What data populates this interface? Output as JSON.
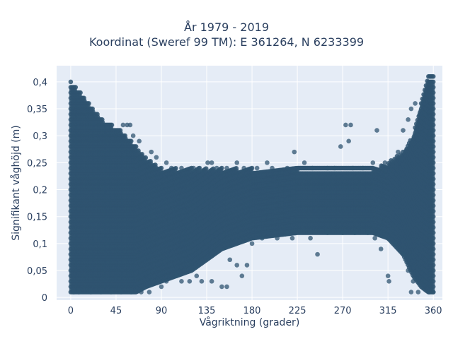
{
  "chart_data": {
    "type": "scatter",
    "title_lines": [
      "År 1979 - 2019",
      "Koordinat (Sweref 99 TM): E 361264, N 6233399"
    ],
    "xlabel": "Vågriktning (grader)",
    "ylabel": "Signifikant våghöjd (m)",
    "xlim": [
      -14,
      369
    ],
    "ylim": [
      -0.005,
      0.43
    ],
    "xticks": [
      0,
      45,
      90,
      135,
      180,
      225,
      270,
      315,
      360
    ],
    "xtick_labels": [
      "0",
      "45",
      "90",
      "135",
      "180",
      "225",
      "270",
      "315",
      "360"
    ],
    "yticks": [
      0,
      0.05,
      0.1,
      0.15,
      0.2,
      0.25,
      0.3,
      0.35,
      0.4
    ],
    "ytick_labels": [
      "0",
      "0,05",
      "0,1",
      "0,15",
      "0,2",
      "0,25",
      "0,3",
      "0,35",
      "0,4"
    ],
    "grid": true,
    "marker_color": "#2f5470",
    "dense_band": {
      "height_step": 0.01,
      "x_range": [
        0,
        360
      ],
      "y_range": [
        0.01,
        0.4
      ]
    },
    "envelope": [
      {
        "x": 0,
        "ymax": 0.4,
        "ymin": 0.01
      },
      {
        "x": 10,
        "ymax": 0.38,
        "ymin": 0.01
      },
      {
        "x": 18,
        "ymax": 0.36,
        "ymin": 0.01
      },
      {
        "x": 32,
        "ymax": 0.33,
        "ymin": 0.01
      },
      {
        "x": 50,
        "ymax": 0.31,
        "ymin": 0.01
      },
      {
        "x": 65,
        "ymax": 0.28,
        "ymin": 0.01
      },
      {
        "x": 75,
        "ymax": 0.26,
        "ymin": 0.02
      },
      {
        "x": 90,
        "ymax": 0.24,
        "ymin": 0.03
      },
      {
        "x": 120,
        "ymax": 0.24,
        "ymin": 0.05
      },
      {
        "x": 150,
        "ymax": 0.24,
        "ymin": 0.09
      },
      {
        "x": 180,
        "ymax": 0.24,
        "ymin": 0.11
      },
      {
        "x": 225,
        "ymax": 0.24,
        "ymin": 0.12
      },
      {
        "x": 270,
        "ymax": 0.24,
        "ymin": 0.12
      },
      {
        "x": 300,
        "ymax": 0.24,
        "ymin": 0.12
      },
      {
        "x": 315,
        "ymax": 0.25,
        "ymin": 0.11
      },
      {
        "x": 330,
        "ymax": 0.27,
        "ymin": 0.08
      },
      {
        "x": 340,
        "ymax": 0.3,
        "ymin": 0.04
      },
      {
        "x": 348,
        "ymax": 0.36,
        "ymin": 0.02
      },
      {
        "x": 355,
        "ymax": 0.41,
        "ymin": 0.01
      },
      {
        "x": 360,
        "ymax": 0.41,
        "ymin": 0.01
      }
    ],
    "outliers": [
      {
        "x": 3,
        "y": 0.01
      },
      {
        "x": 8,
        "y": 0.01
      },
      {
        "x": 20,
        "y": 0.01
      },
      {
        "x": 30,
        "y": 0.01
      },
      {
        "x": 40,
        "y": 0.01
      },
      {
        "x": 50,
        "y": 0.01
      },
      {
        "x": 60,
        "y": 0.01
      },
      {
        "x": 70,
        "y": 0.01
      },
      {
        "x": 78,
        "y": 0.01
      },
      {
        "x": 52,
        "y": 0.32
      },
      {
        "x": 56,
        "y": 0.32
      },
      {
        "x": 59,
        "y": 0.32
      },
      {
        "x": 62,
        "y": 0.3
      },
      {
        "x": 68,
        "y": 0.29
      },
      {
        "x": 80,
        "y": 0.27
      },
      {
        "x": 85,
        "y": 0.26
      },
      {
        "x": 95,
        "y": 0.25
      },
      {
        "x": 100,
        "y": 0.24
      },
      {
        "x": 110,
        "y": 0.24
      },
      {
        "x": 122,
        "y": 0.24
      },
      {
        "x": 128,
        "y": 0.24
      },
      {
        "x": 136,
        "y": 0.25
      },
      {
        "x": 140,
        "y": 0.25
      },
      {
        "x": 145,
        "y": 0.24
      },
      {
        "x": 155,
        "y": 0.24
      },
      {
        "x": 165,
        "y": 0.25
      },
      {
        "x": 172,
        "y": 0.24
      },
      {
        "x": 185,
        "y": 0.24
      },
      {
        "x": 195,
        "y": 0.25
      },
      {
        "x": 200,
        "y": 0.24
      },
      {
        "x": 215,
        "y": 0.24
      },
      {
        "x": 222,
        "y": 0.27
      },
      {
        "x": 232,
        "y": 0.25
      },
      {
        "x": 240,
        "y": 0.24
      },
      {
        "x": 255,
        "y": 0.24
      },
      {
        "x": 262,
        "y": 0.24
      },
      {
        "x": 268,
        "y": 0.28
      },
      {
        "x": 273,
        "y": 0.32
      },
      {
        "x": 278,
        "y": 0.32
      },
      {
        "x": 276,
        "y": 0.29
      },
      {
        "x": 280,
        "y": 0.24
      },
      {
        "x": 290,
        "y": 0.24
      },
      {
        "x": 300,
        "y": 0.25
      },
      {
        "x": 304,
        "y": 0.31
      },
      {
        "x": 312,
        "y": 0.25
      },
      {
        "x": 325,
        "y": 0.27
      },
      {
        "x": 330,
        "y": 0.31
      },
      {
        "x": 335,
        "y": 0.33
      },
      {
        "x": 338,
        "y": 0.35
      },
      {
        "x": 342,
        "y": 0.36
      },
      {
        "x": 90,
        "y": 0.02
      },
      {
        "x": 95,
        "y": 0.03
      },
      {
        "x": 105,
        "y": 0.04
      },
      {
        "x": 110,
        "y": 0.03
      },
      {
        "x": 118,
        "y": 0.03
      },
      {
        "x": 125,
        "y": 0.04
      },
      {
        "x": 130,
        "y": 0.03
      },
      {
        "x": 140,
        "y": 0.03
      },
      {
        "x": 150,
        "y": 0.02
      },
      {
        "x": 155,
        "y": 0.02
      },
      {
        "x": 158,
        "y": 0.07
      },
      {
        "x": 165,
        "y": 0.06
      },
      {
        "x": 170,
        "y": 0.04
      },
      {
        "x": 175,
        "y": 0.06
      },
      {
        "x": 180,
        "y": 0.1
      },
      {
        "x": 190,
        "y": 0.11
      },
      {
        "x": 205,
        "y": 0.11
      },
      {
        "x": 215,
        "y": 0.12
      },
      {
        "x": 220,
        "y": 0.11
      },
      {
        "x": 238,
        "y": 0.11
      },
      {
        "x": 245,
        "y": 0.08
      },
      {
        "x": 255,
        "y": 0.12
      },
      {
        "x": 270,
        "y": 0.12
      },
      {
        "x": 282,
        "y": 0.12
      },
      {
        "x": 295,
        "y": 0.12
      },
      {
        "x": 302,
        "y": 0.11
      },
      {
        "x": 308,
        "y": 0.09
      },
      {
        "x": 315,
        "y": 0.04
      },
      {
        "x": 316,
        "y": 0.03
      },
      {
        "x": 322,
        "y": 0.1
      },
      {
        "x": 330,
        "y": 0.08
      },
      {
        "x": 335,
        "y": 0.05
      },
      {
        "x": 340,
        "y": 0.03
      },
      {
        "x": 338,
        "y": 0.01
      },
      {
        "x": 345,
        "y": 0.01
      },
      {
        "x": 356,
        "y": 0.01
      },
      {
        "x": 360,
        "y": 0.01
      }
    ]
  }
}
